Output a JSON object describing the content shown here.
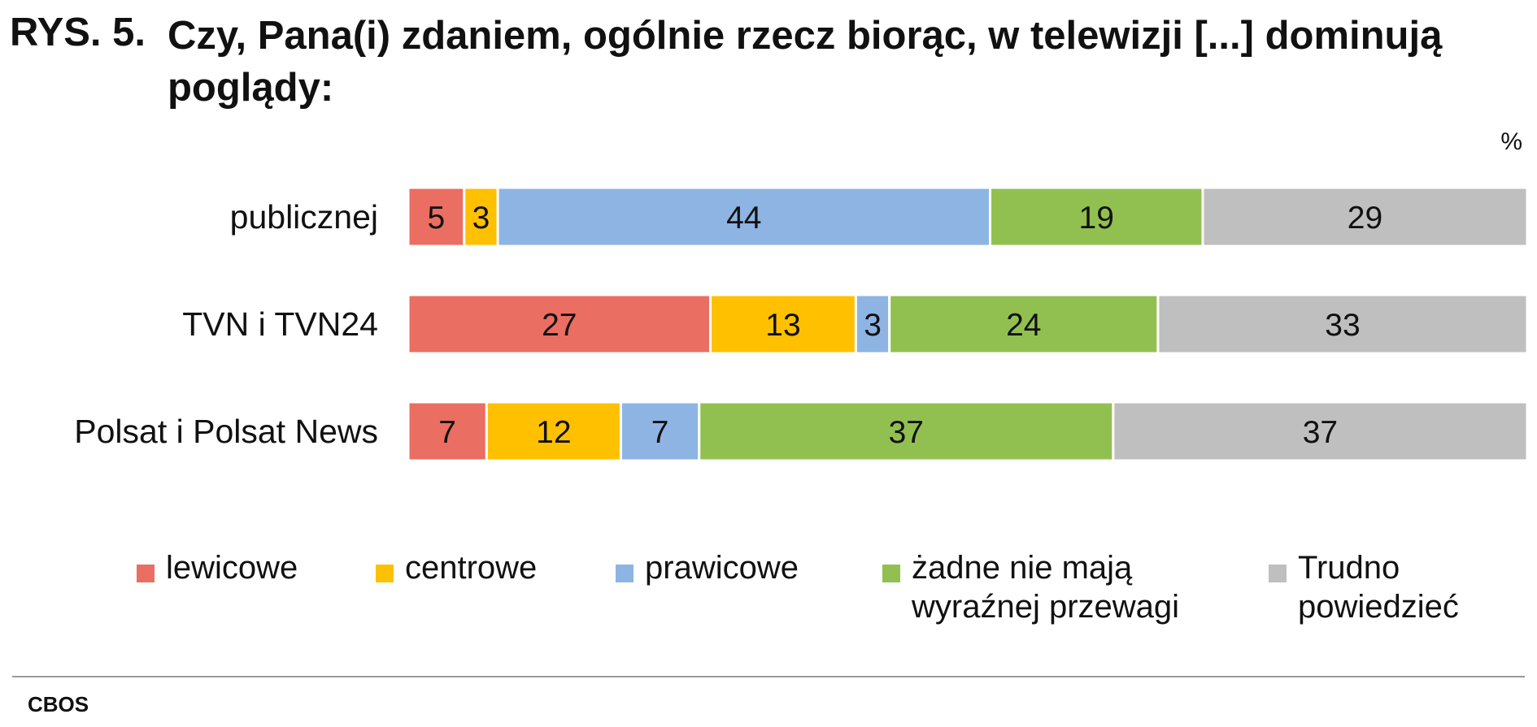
{
  "title": {
    "prefix": "RYS. 5.",
    "text": "Czy, Pana(i) zdaniem, ogólnie rzecz biorąc, w telewizji [...] dominują poglądy:"
  },
  "unit": "%",
  "source": "CBOS",
  "colors": {
    "lewicowe": "#ea6e62",
    "centrowe": "#ffc000",
    "prawicowe": "#8eb4e3",
    "zadne": "#92c050",
    "trudno": "#bfbfbf"
  },
  "chart_data": {
    "type": "bar",
    "orientation": "horizontal",
    "stacked": true,
    "categories": [
      "publicznej",
      "TVN i TVN24",
      "Polsat i Polsat News"
    ],
    "series": [
      {
        "name": "lewicowe",
        "values": [
          5,
          27,
          7
        ],
        "color": "#ea6e62"
      },
      {
        "name": "centrowe",
        "values": [
          3,
          13,
          12
        ],
        "color": "#ffc000"
      },
      {
        "name": "prawicowe",
        "values": [
          44,
          3,
          7
        ],
        "color": "#8eb4e3"
      },
      {
        "name": "żadne nie mają wyraźnej przewagi",
        "values": [
          19,
          24,
          37
        ],
        "color": "#92c050"
      },
      {
        "name": "Trudno powiedzieć",
        "values": [
          29,
          33,
          37
        ],
        "color": "#bfbfbf"
      }
    ],
    "legend_position": "bottom",
    "grid": false
  },
  "legend": [
    {
      "lines": [
        "lewicowe"
      ],
      "color": "#ea6e62"
    },
    {
      "lines": [
        "centrowe"
      ],
      "color": "#ffc000"
    },
    {
      "lines": [
        "prawicowe"
      ],
      "color": "#8eb4e3"
    },
    {
      "lines": [
        "żadne nie mają",
        "wyraźnej przewagi"
      ],
      "color": "#92c050"
    },
    {
      "lines": [
        "Trudno",
        "powiedzieć"
      ],
      "color": "#bfbfbf"
    }
  ]
}
